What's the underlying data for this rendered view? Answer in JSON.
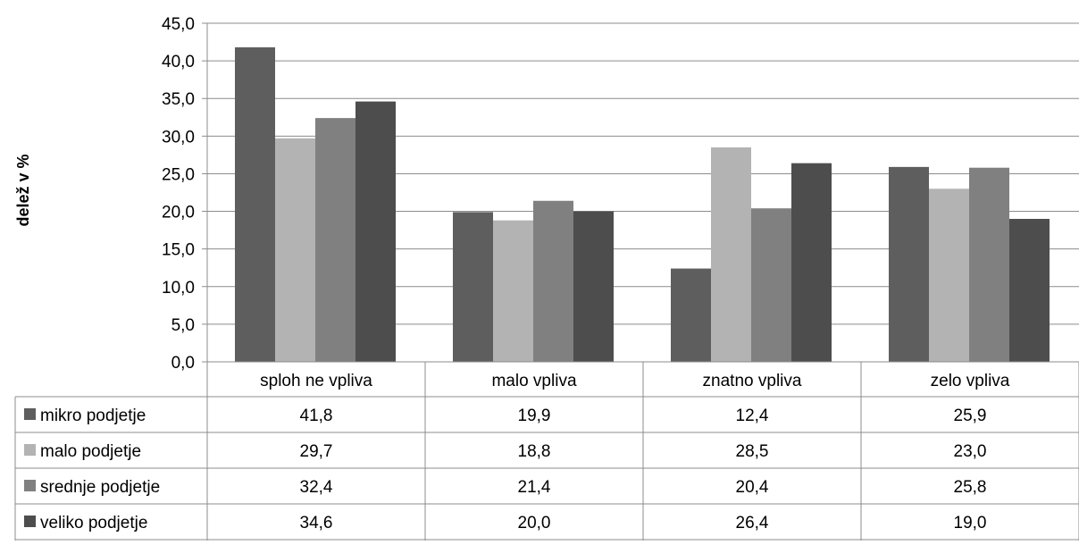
{
  "chart_data": {
    "type": "bar",
    "ylabel": "delež v %",
    "ylim": [
      0,
      45
    ],
    "ytick_step": 5,
    "ytick_labels": [
      "0,0",
      "5,0",
      "10,0",
      "15,0",
      "20,0",
      "25,0",
      "30,0",
      "35,0",
      "40,0",
      "45,0"
    ],
    "grid": true,
    "legend": "data-table",
    "categories": [
      "sploh ne vpliva",
      "malo vpliva",
      "znatno vpliva",
      "zelo vpliva"
    ],
    "series": [
      {
        "name": "mikro podjetje",
        "color": "#5e5e5e",
        "values": [
          41.8,
          19.9,
          12.4,
          25.9
        ],
        "labels": [
          "41,8",
          "19,9",
          "12,4",
          "25,9"
        ]
      },
      {
        "name": "malo podjetje",
        "color": "#b3b3b3",
        "values": [
          29.7,
          18.8,
          28.5,
          23.0
        ],
        "labels": [
          "29,7",
          "18,8",
          "28,5",
          "23,0"
        ]
      },
      {
        "name": "srednje podjetje",
        "color": "#808080",
        "values": [
          32.4,
          21.4,
          20.4,
          25.8
        ],
        "labels": [
          "32,4",
          "21,4",
          "20,4",
          "25,8"
        ]
      },
      {
        "name": "veliko podjetje",
        "color": "#4d4d4d",
        "values": [
          34.6,
          20.0,
          26.4,
          19.0
        ],
        "labels": [
          "34,6",
          "20,0",
          "26,4",
          "19,0"
        ]
      }
    ]
  }
}
